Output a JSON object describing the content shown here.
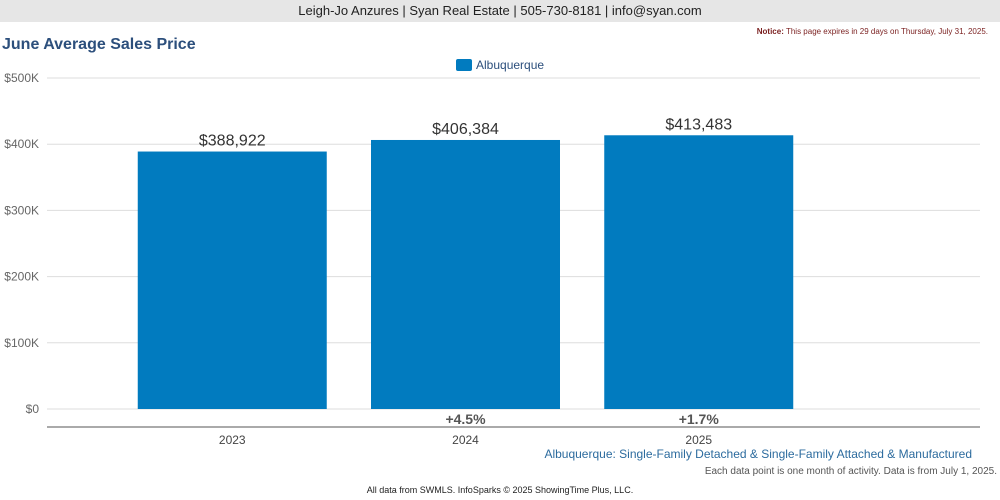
{
  "header": {
    "contact": "Leigh-Jo Anzures | Syan Real Estate | 505-730-8181 | info@syan.com",
    "notice_label": "Notice:",
    "notice_text": "This page expires in 29 days on Thursday, July 31, 2025."
  },
  "chart_data": {
    "type": "bar",
    "title": "June Average Sales Price",
    "categories": [
      "2023",
      "2024",
      "2025"
    ],
    "series": [
      {
        "name": "Albuquerque",
        "values": [
          388922,
          406384,
          413483
        ]
      }
    ],
    "data_labels": [
      "$388,922",
      "$406,384",
      "$413,483"
    ],
    "change_labels": [
      "",
      "+4.5%",
      "+1.7%"
    ],
    "ylim": [
      0,
      500000
    ],
    "yticks": [
      0,
      100000,
      200000,
      300000,
      400000,
      500000
    ],
    "ytick_labels": [
      "$0",
      "$100K",
      "$200K",
      "$300K",
      "$400K",
      "$500K"
    ],
    "grid": true,
    "legend_position": "top-center",
    "bar_color": "#017bbf"
  },
  "subtitle": "Albuquerque: Single-Family Detached & Single-Family Attached & Manufactured",
  "caption": "Each data point is one month of activity. Data is from July 1, 2025.",
  "footer": "All data from SWMLS. InfoSparks © 2025 ShowingTime Plus, LLC."
}
